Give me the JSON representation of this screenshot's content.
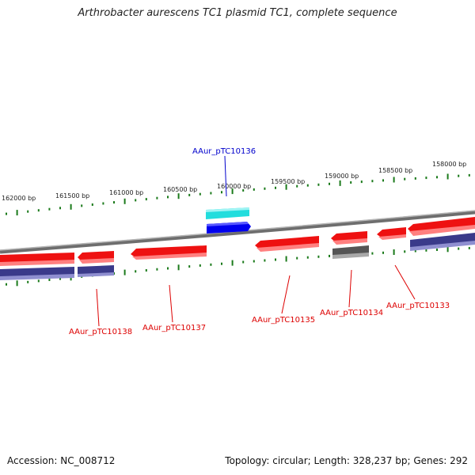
{
  "title": "Arthrobacter aurescens TC1 plasmid TC1, complete sequence",
  "footer": {
    "accession": "Accession: NC_008712",
    "summary": "Topology: circular; Length: 328,237 bp; Genes: 292"
  },
  "colors": {
    "backbone": "#8a8a8a",
    "tick": "#1a7a1a",
    "gene_red": "#ee1111",
    "gene_blue": "#0000ee",
    "gene_cyan": "#22dddd",
    "gene_gray": "#555555",
    "gene_purple": "#3a3a8a",
    "label_red": "#dd0000",
    "label_blue": "#0000cc"
  },
  "tick_labels": [
    "162000 bp",
    "161500 bp",
    "161000 bp",
    "160500 bp",
    "160000 bp",
    "159500 bp",
    "159000 bp",
    "158500 bp",
    "158000 bp"
  ],
  "gene_labels": [
    {
      "id": "AAur_pTC10136",
      "color": "label_blue"
    },
    {
      "id": "AAur_pTC10138",
      "color": "label_red"
    },
    {
      "id": "AAur_pTC10137",
      "color": "label_red"
    },
    {
      "id": "AAur_pTC10135",
      "color": "label_red"
    },
    {
      "id": "AAur_pTC10134",
      "color": "label_red"
    },
    {
      "id": "AAur_pTC10133",
      "color": "label_red"
    }
  ]
}
